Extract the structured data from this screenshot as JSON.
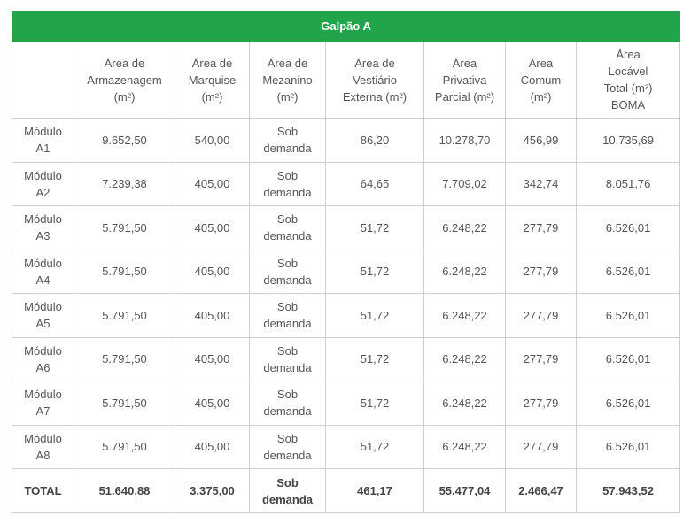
{
  "table": {
    "title": "Galpão A",
    "columns": [
      "",
      "Área de\nArmazenagem\n(m²)",
      "Área de\nMarquise\n(m²)",
      "Área de\nMezanino\n(m²)",
      "Área de\nVestiário\nExterna (m²)",
      "Área\nPrivativa\nParcial (m²)",
      "Área\nComum\n(m²)",
      "Área\nLocável\nTotal (m²)\nBOMA"
    ],
    "rows": [
      [
        "Módulo\nA1",
        "9.652,50",
        "540,00",
        "Sob\ndemanda",
        "86,20",
        "10.278,70",
        "456,99",
        "10.735,69"
      ],
      [
        "Módulo\nA2",
        "7.239,38",
        "405,00",
        "Sob\ndemanda",
        "64,65",
        "7.709,02",
        "342,74",
        "8.051,76"
      ],
      [
        "Módulo\nA3",
        "5.791,50",
        "405,00",
        "Sob\ndemanda",
        "51,72",
        "6.248,22",
        "277,79",
        "6.526,01"
      ],
      [
        "Módulo\nA4",
        "5.791,50",
        "405,00",
        "Sob\ndemanda",
        "51,72",
        "6.248,22",
        "277,79",
        "6.526,01"
      ],
      [
        "Módulo\nA5",
        "5.791,50",
        "405,00",
        "Sob\ndemanda",
        "51,72",
        "6.248,22",
        "277,79",
        "6.526,01"
      ],
      [
        "Módulo\nA6",
        "5.791,50",
        "405,00",
        "Sob\ndemanda",
        "51,72",
        "6.248,22",
        "277,79",
        "6.526,01"
      ],
      [
        "Módulo\nA7",
        "5.791,50",
        "405,00",
        "Sob\ndemanda",
        "51,72",
        "6.248,22",
        "277,79",
        "6.526,01"
      ],
      [
        "Módulo\nA8",
        "5.791,50",
        "405,00",
        "Sob\ndemanda",
        "51,72",
        "6.248,22",
        "277,79",
        "6.526,01"
      ]
    ],
    "total": [
      "TOTAL",
      "51.640,88",
      "3.375,00",
      "Sob\ndemanda",
      "461,17",
      "55.477,04",
      "2.466,47",
      "57.943,52"
    ]
  }
}
